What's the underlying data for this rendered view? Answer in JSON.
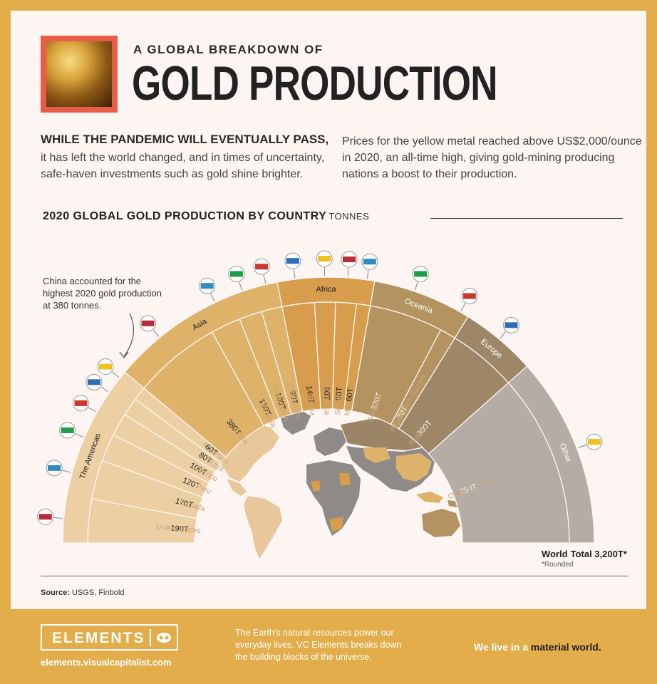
{
  "header": {
    "kicker": "A GLOBAL BREAKDOWN OF",
    "title": "GOLD PRODUCTION"
  },
  "intro": {
    "lead": "WHILE THE PANDEMIC WILL EVENTUALLY PASS,",
    "left_line1": "it has left the world changed, and in times of uncertainty,",
    "left_line2": "safe-haven investments such as gold shine brighter.",
    "right_line1": "Prices for the yellow metal reached above US$2,000/ounce",
    "right_line2": "in 2020, an all-time high, giving gold-mining producing",
    "right_line3": "nations a boost to their production."
  },
  "section": {
    "title": "2020 GLOBAL GOLD PRODUCTION BY COUNTRY",
    "unit": "TONNES"
  },
  "callout": {
    "line1": "China accounted for the",
    "line2": "highest 2020 gold production",
    "line3": "at 380 tonnes."
  },
  "total": {
    "label": "World",
    "value": "Total 3,200T*",
    "note": "*Rounded"
  },
  "source": {
    "label": "Source:",
    "text": "USGS, Finbold"
  },
  "footer": {
    "brand": "ELEMENTS",
    "url": "elements.visualcapitalist.com",
    "blurb_line1": "The Earth's natural resources power our",
    "blurb_line2": "everyday lives. VC Elements breaks down",
    "blurb_line3": "the building blocks of the universe.",
    "tagline_start": "We live in a ",
    "tagline_em": "material world."
  },
  "chart_data": {
    "type": "semicircle-bar",
    "title": "2020 GLOBAL GOLD PRODUCTION BY COUNTRY",
    "unit": "TONNES",
    "regions": [
      {
        "name": "The Americas",
        "color": "#ecd0a3",
        "text_color": "#222"
      },
      {
        "name": "Asia",
        "color": "#dfb26a",
        "text_color": "#222"
      },
      {
        "name": "Africa",
        "color": "#d79c4c",
        "text_color": "#222"
      },
      {
        "name": "Oceania",
        "color": "#b39460",
        "text_color": "#fff"
      },
      {
        "name": "Europe",
        "color": "#9e8767",
        "text_color": "#fff"
      },
      {
        "name": "Other",
        "color": "#b5aca6",
        "text_color": "#fff"
      }
    ],
    "countries": [
      {
        "name": "United States",
        "value": 190,
        "label": "190T",
        "region": "The Americas"
      },
      {
        "name": "Canada",
        "value": 170,
        "label": "170T",
        "region": "The Americas"
      },
      {
        "name": "Peru",
        "value": 120,
        "label": "120T",
        "region": "The Americas"
      },
      {
        "name": "Mexico",
        "value": 100,
        "label": "100T",
        "region": "The Americas"
      },
      {
        "name": "Brazil",
        "value": 80,
        "label": "80T",
        "region": "The Americas"
      },
      {
        "name": "Argentina",
        "value": 60,
        "label": "60T",
        "region": "The Americas"
      },
      {
        "name": "China",
        "value": 380,
        "label": "380T",
        "region": "Asia"
      },
      {
        "name": "Indonesia",
        "value": 130,
        "label": "130T",
        "region": "Asia"
      },
      {
        "name": "Kazakhstan",
        "value": 100,
        "label": "100T",
        "region": "Asia"
      },
      {
        "name": "Uzbekistan",
        "value": 90,
        "label": "90T",
        "region": "Asia"
      },
      {
        "name": "Ghana",
        "value": 140,
        "label": "140T",
        "region": "Africa"
      },
      {
        "name": "South Africa",
        "value": 90,
        "label": "90T",
        "region": "Africa"
      },
      {
        "name": "Sudan",
        "value": 90,
        "label": "90T",
        "region": "Africa"
      },
      {
        "name": "Mali",
        "value": 60,
        "label": "60T",
        "region": "Africa"
      },
      {
        "name": "Australia",
        "value": 320,
        "label": "320T",
        "region": "Oceania"
      },
      {
        "name": "Papua New Guinea",
        "value": 70,
        "label": "70T",
        "region": "Oceania"
      },
      {
        "name": "Russia",
        "value": 300,
        "label": "300T",
        "region": "Europe"
      },
      {
        "name": "Other Countries",
        "value": 750,
        "label": "750T",
        "region": "Other"
      }
    ],
    "total": 3200
  }
}
